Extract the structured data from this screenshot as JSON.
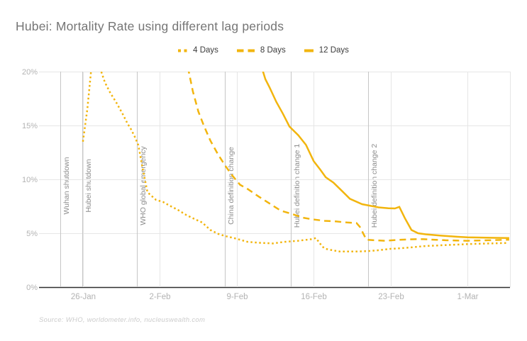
{
  "chart_data": {
    "type": "line",
    "title": "Hubei: Mortality Rate using different lag periods",
    "xlabel": "",
    "ylabel": "",
    "ylim": [
      0,
      20
    ],
    "xlim_days": [
      -3.87,
      38.87
    ],
    "grid": true,
    "legend_position": "top-center",
    "line_color": "#F2B50E",
    "gridline_color": "#e6e6e6",
    "annotation_line_color": "#c6c6c6",
    "baseline_color": "#2e2e2e",
    "y_ticks": [
      {
        "label": "20%",
        "value": 20
      },
      {
        "label": "15%",
        "value": 15
      },
      {
        "label": "10%",
        "value": 10
      },
      {
        "label": "5%",
        "value": 5
      },
      {
        "label": "0%",
        "value": 0
      }
    ],
    "x_ticks": [
      {
        "label": "26-Jan",
        "day": 0
      },
      {
        "label": "2-Feb",
        "day": 7
      },
      {
        "label": "9-Feb",
        "day": 14
      },
      {
        "label": "16-Feb",
        "day": 21
      },
      {
        "label": "23-Feb",
        "day": 28
      },
      {
        "label": "1-Mar",
        "day": 35
      }
    ],
    "annotations": [
      {
        "label": "Wuhan shutdown",
        "day": -2
      },
      {
        "label": "Hubei shutdown",
        "day": 0
      },
      {
        "label": "WHO global emergency",
        "day": 5
      },
      {
        "label": "China definition change",
        "day": 13
      },
      {
        "label": "Hubei definition change 1",
        "day": 19
      },
      {
        "label": "Hubei definition change 2",
        "day": 26
      }
    ],
    "series": [
      {
        "name": "4 Days",
        "style": "dotted",
        "points": [
          [
            0,
            13.5
          ],
          [
            0.4,
            16.5
          ],
          [
            0.75,
            20.2
          ],
          [
            1.0,
            21.3
          ],
          [
            1.3,
            21.2
          ],
          [
            1.6,
            20.2
          ],
          [
            2,
            19.0
          ],
          [
            2.5,
            18.0
          ],
          [
            3,
            17.2
          ],
          [
            3.6,
            16.1
          ],
          [
            4.1,
            15.1
          ],
          [
            4.3,
            14.8
          ],
          [
            4.7,
            14.0
          ],
          [
            5.03,
            13.2
          ],
          [
            5.2,
            12.3
          ],
          [
            5.36,
            11.4
          ],
          [
            5.5,
            10.7
          ],
          [
            5.7,
            9.7
          ],
          [
            5.87,
            8.8
          ],
          [
            6.65,
            8.1
          ],
          [
            7.3,
            7.9
          ],
          [
            7.9,
            7.55
          ],
          [
            8.6,
            7.2
          ],
          [
            9.4,
            6.7
          ],
          [
            10.2,
            6.3
          ],
          [
            10.85,
            6.0
          ],
          [
            11.6,
            5.3
          ],
          [
            12.3,
            4.95
          ],
          [
            12.9,
            4.75
          ],
          [
            13.75,
            4.55
          ],
          [
            15,
            4.2
          ],
          [
            16.3,
            4.1
          ],
          [
            17.3,
            4.05
          ],
          [
            18.3,
            4.2
          ],
          [
            19.6,
            4.3
          ],
          [
            20.8,
            4.45
          ],
          [
            21.2,
            4.55
          ],
          [
            21.5,
            4.15
          ],
          [
            21.8,
            3.75
          ],
          [
            22.1,
            3.55
          ],
          [
            22.8,
            3.4
          ],
          [
            23.4,
            3.3
          ],
          [
            24.2,
            3.3
          ],
          [
            25,
            3.3
          ],
          [
            26,
            3.35
          ],
          [
            26.7,
            3.4
          ],
          [
            28,
            3.55
          ],
          [
            28.8,
            3.6
          ],
          [
            30,
            3.7
          ],
          [
            31,
            3.8
          ],
          [
            33,
            3.9
          ],
          [
            35.2,
            4.0
          ],
          [
            37,
            4.05
          ],
          [
            38.7,
            4.1
          ]
        ]
      },
      {
        "name": "8 Days",
        "style": "dashed",
        "points": [
          [
            9.55,
            20.4
          ],
          [
            10,
            18.2
          ],
          [
            10.5,
            16.3
          ],
          [
            11,
            15.0
          ],
          [
            11.6,
            13.6
          ],
          [
            12.3,
            12.3
          ],
          [
            13,
            11.2
          ],
          [
            13.6,
            10.35
          ],
          [
            14.3,
            9.5
          ],
          [
            15,
            9.1
          ],
          [
            16,
            8.4
          ],
          [
            17,
            7.75
          ],
          [
            18,
            7.1
          ],
          [
            19,
            6.8
          ],
          [
            20,
            6.45
          ],
          [
            20.8,
            6.3
          ],
          [
            22,
            6.15
          ],
          [
            23,
            6.1
          ],
          [
            24,
            6.0
          ],
          [
            24.9,
            5.95
          ],
          [
            25.2,
            5.6
          ],
          [
            25.8,
            4.4
          ],
          [
            26.5,
            4.35
          ],
          [
            27.5,
            4.3
          ],
          [
            29,
            4.4
          ],
          [
            30.3,
            4.45
          ],
          [
            31,
            4.45
          ],
          [
            33,
            4.35
          ],
          [
            35,
            4.3
          ],
          [
            37,
            4.35
          ],
          [
            38.8,
            4.4
          ]
        ]
      },
      {
        "name": "12 Days",
        "style": "solid",
        "points": [
          [
            16.3,
            20.3
          ],
          [
            16.6,
            19.3
          ],
          [
            17,
            18.5
          ],
          [
            17.6,
            17.2
          ],
          [
            18.2,
            16.1
          ],
          [
            18.8,
            14.9
          ],
          [
            19.6,
            14.1
          ],
          [
            20.3,
            13.2
          ],
          [
            21,
            11.7
          ],
          [
            21.6,
            10.9
          ],
          [
            22.1,
            10.2
          ],
          [
            22.8,
            9.7
          ],
          [
            23.6,
            8.9
          ],
          [
            24.3,
            8.2
          ],
          [
            25.4,
            7.7
          ],
          [
            26.9,
            7.4
          ],
          [
            27.8,
            7.32
          ],
          [
            28.4,
            7.3
          ],
          [
            28.8,
            7.45
          ],
          [
            29.3,
            6.4
          ],
          [
            29.9,
            5.3
          ],
          [
            30.5,
            5.0
          ],
          [
            31.2,
            4.9
          ],
          [
            32.5,
            4.78
          ],
          [
            34.1,
            4.67
          ],
          [
            35,
            4.62
          ],
          [
            36.3,
            4.6
          ],
          [
            37.6,
            4.57
          ],
          [
            38.8,
            4.55
          ]
        ]
      }
    ]
  },
  "source": {
    "text": "Source: WHO, worldometer.info, nucleuswealth.com"
  }
}
